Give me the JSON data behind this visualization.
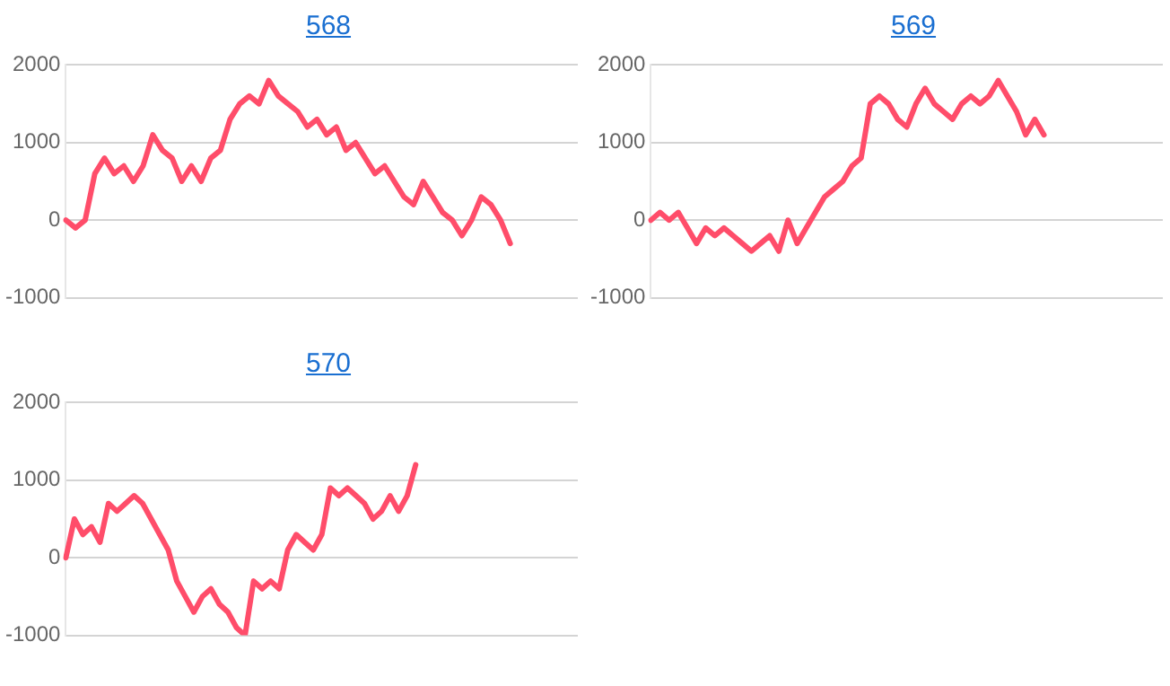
{
  "chart_data": [
    {
      "type": "line",
      "title": "568",
      "categories": [
        null,
        null,
        null,
        null,
        null,
        null,
        null,
        null,
        null,
        null,
        null,
        null,
        null,
        null,
        null,
        null,
        null,
        null,
        null,
        null,
        null,
        null,
        null,
        null,
        null,
        null,
        null,
        null,
        null,
        null,
        null,
        null,
        null,
        null,
        null,
        null,
        null,
        null,
        null,
        null,
        null,
        null,
        null,
        null,
        null,
        null,
        null,
        null,
        null,
        null,
        null,
        null,
        null,
        null
      ],
      "series": [
        {
          "color": "#ff4d6a",
          "values": [
            0,
            -100,
            0,
            600,
            800,
            600,
            700,
            500,
            700,
            1100,
            900,
            800,
            500,
            700,
            500,
            800,
            900,
            1300,
            1500,
            1600,
            1500,
            1800,
            1600,
            1500,
            1400,
            1200,
            1300,
            1100,
            1200,
            900,
            1000,
            800,
            600,
            700,
            500,
            300,
            200,
            500,
            300,
            100,
            0,
            -200,
            0,
            300,
            200,
            0,
            -300,
            null,
            null,
            null,
            null,
            null,
            null,
            null
          ]
        }
      ],
      "ylim": [
        -1000,
        2000
      ],
      "yticks": [
        -1000,
        0,
        1000,
        2000
      ],
      "grid": "y",
      "tick_labels": "y",
      "marker": "none",
      "line_style": "solid",
      "legend": false
    },
    {
      "type": "line",
      "title": "569",
      "categories": [
        null,
        null,
        null,
        null,
        null,
        null,
        null,
        null,
        null,
        null,
        null,
        null,
        null,
        null,
        null,
        null,
        null,
        null,
        null,
        null,
        null,
        null,
        null,
        null,
        null,
        null,
        null,
        null,
        null,
        null,
        null,
        null,
        null,
        null,
        null,
        null,
        null,
        null,
        null,
        null,
        null,
        null,
        null,
        null,
        null,
        null,
        null,
        null,
        null,
        null,
        null,
        null,
        null,
        null,
        null,
        null,
        null
      ],
      "series": [
        {
          "color": "#ff4d6a",
          "values": [
            0,
            100,
            0,
            100,
            -100,
            -300,
            -100,
            -200,
            -100,
            -200,
            -300,
            -400,
            -300,
            -200,
            -400,
            0,
            -300,
            -100,
            100,
            300,
            400,
            500,
            700,
            800,
            1500,
            1600,
            1500,
            1300,
            1200,
            1500,
            1700,
            1500,
            1400,
            1300,
            1500,
            1600,
            1500,
            1600,
            1800,
            1600,
            1400,
            1100,
            1300,
            1100,
            null,
            null,
            null,
            null,
            null,
            null,
            null,
            null,
            null,
            null,
            null,
            null,
            null
          ]
        }
      ],
      "ylim": [
        -1000,
        2000
      ],
      "yticks": [
        -1000,
        0,
        1000,
        2000
      ],
      "grid": "y",
      "tick_labels": "y",
      "marker": "none",
      "line_style": "solid",
      "legend": false
    },
    {
      "type": "line",
      "title": "570",
      "categories": [
        null,
        null,
        null,
        null,
        null,
        null,
        null,
        null,
        null,
        null,
        null,
        null,
        null,
        null,
        null,
        null,
        null,
        null,
        null,
        null,
        null,
        null,
        null,
        null,
        null,
        null,
        null,
        null,
        null,
        null,
        null,
        null,
        null,
        null,
        null,
        null,
        null,
        null,
        null,
        null,
        null,
        null,
        null,
        null,
        null,
        null,
        null,
        null,
        null,
        null,
        null,
        null,
        null,
        null,
        null,
        null,
        null,
        null,
        null,
        null,
        null
      ],
      "series": [
        {
          "color": "#ff4d6a",
          "values": [
            0,
            500,
            300,
            400,
            200,
            700,
            600,
            700,
            800,
            700,
            500,
            300,
            100,
            -300,
            -500,
            -700,
            -500,
            -400,
            -600,
            -700,
            -900,
            -1000,
            -300,
            -400,
            -300,
            -400,
            100,
            300,
            200,
            100,
            300,
            900,
            800,
            900,
            800,
            700,
            500,
            600,
            800,
            600,
            800,
            1200,
            null,
            null,
            null,
            null,
            null,
            null,
            null,
            null,
            null,
            null,
            null,
            null,
            null,
            null,
            null,
            null,
            null,
            null,
            null
          ]
        }
      ],
      "ylim": [
        -1000,
        2000
      ],
      "yticks": [
        -1000,
        0,
        1000,
        2000
      ],
      "grid": "y",
      "tick_labels": "y",
      "marker": "none",
      "line_style": "solid",
      "legend": false
    }
  ]
}
